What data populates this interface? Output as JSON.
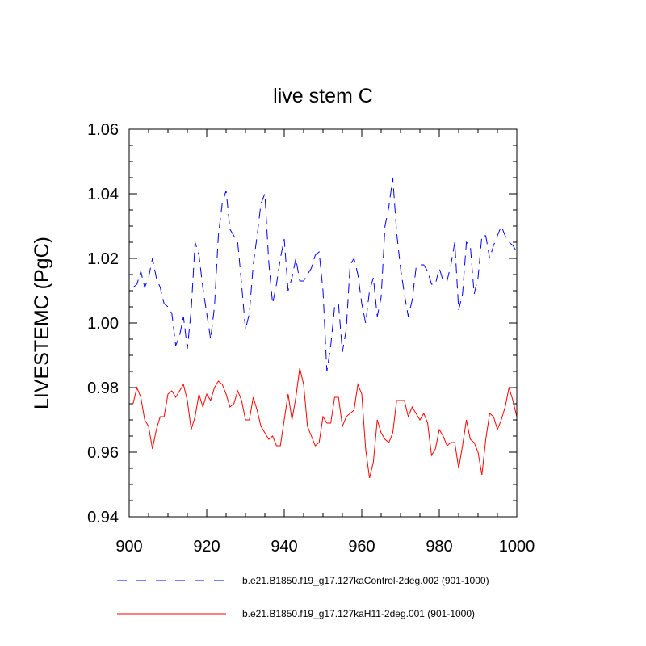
{
  "chart_data": {
    "type": "line",
    "title": "live stem C",
    "xlabel": "",
    "ylabel": "LIVESTEMC  (PgC)",
    "xlim": [
      900,
      1000
    ],
    "ylim": [
      0.94,
      1.06
    ],
    "x_ticks": [
      900,
      920,
      940,
      960,
      980,
      1000
    ],
    "x_tick_labels": [
      "900",
      "920",
      "940",
      "960",
      "980",
      "1000"
    ],
    "y_ticks": [
      0.94,
      0.96,
      0.98,
      1.0,
      1.02,
      1.04,
      1.06
    ],
    "y_tick_labels": [
      "0.94",
      "0.96",
      "0.98",
      "1.00",
      "1.02",
      "1.04",
      "1.06"
    ],
    "x_minor_step": 5,
    "y_minor_step": 0.005,
    "x": [
      901,
      902,
      903,
      904,
      905,
      906,
      907,
      908,
      909,
      910,
      911,
      912,
      913,
      914,
      915,
      916,
      917,
      918,
      919,
      920,
      921,
      922,
      923,
      924,
      925,
      926,
      927,
      928,
      929,
      930,
      931,
      932,
      933,
      934,
      935,
      936,
      937,
      938,
      939,
      940,
      941,
      942,
      943,
      944,
      945,
      946,
      947,
      948,
      949,
      950,
      951,
      952,
      953,
      954,
      955,
      956,
      957,
      958,
      959,
      960,
      961,
      962,
      963,
      964,
      965,
      966,
      967,
      968,
      969,
      970,
      971,
      972,
      973,
      974,
      975,
      976,
      977,
      978,
      979,
      980,
      981,
      982,
      983,
      984,
      985,
      986,
      987,
      988,
      989,
      990,
      991,
      992,
      993,
      994,
      995,
      996,
      997,
      998,
      999,
      1000
    ],
    "series": [
      {
        "name": "b.e21.B1850.f19_g17.127kaControl-2deg.002 (901-1000)",
        "color": "#0000ff",
        "dash": "dashed",
        "values": [
          1.011,
          1.012,
          1.016,
          1.011,
          1.014,
          1.02,
          1.014,
          1.011,
          1.006,
          1.005,
          1.003,
          0.993,
          0.996,
          1.002,
          0.992,
          1.004,
          1.025,
          1.021,
          1.011,
          1.003,
          0.995,
          1.005,
          1.027,
          1.037,
          1.041,
          1.029,
          1.027,
          1.025,
          1.012,
          0.998,
          1.003,
          1.018,
          1.027,
          1.037,
          1.04,
          1.019,
          1.006,
          1.012,
          1.02,
          1.026,
          1.01,
          1.014,
          1.02,
          1.013,
          1.013,
          1.015,
          1.017,
          1.021,
          1.022,
          1.01,
          0.985,
          0.993,
          1.005,
          1.006,
          0.991,
          0.998,
          1.018,
          1.02,
          1.015,
          1.006,
          1.0,
          1.01,
          1.014,
          1.002,
          1.008,
          1.03,
          1.036,
          1.045,
          1.028,
          1.017,
          1.009,
          1.002,
          1.007,
          1.017,
          1.018,
          1.018,
          1.016,
          1.012,
          1.012,
          1.017,
          1.013,
          1.013,
          1.018,
          1.025,
          1.004,
          1.009,
          1.025,
          1.024,
          1.009,
          1.014,
          1.027,
          1.027,
          1.02,
          1.024,
          1.027,
          1.03,
          1.027,
          1.025,
          1.024,
          1.022
        ]
      },
      {
        "name": "b.e21.B1850.f19_g17.127kaH11-2deg.001 (901-1000)",
        "color": "#ff0000",
        "dash": "solid",
        "values": [
          0.975,
          0.98,
          0.977,
          0.97,
          0.968,
          0.961,
          0.967,
          0.971,
          0.971,
          0.978,
          0.979,
          0.977,
          0.979,
          0.981,
          0.976,
          0.967,
          0.971,
          0.978,
          0.974,
          0.978,
          0.976,
          0.98,
          0.982,
          0.981,
          0.978,
          0.974,
          0.975,
          0.979,
          0.976,
          0.97,
          0.97,
          0.977,
          0.973,
          0.968,
          0.966,
          0.964,
          0.965,
          0.962,
          0.962,
          0.97,
          0.978,
          0.97,
          0.977,
          0.986,
          0.981,
          0.968,
          0.965,
          0.962,
          0.963,
          0.971,
          0.969,
          0.969,
          0.977,
          0.977,
          0.968,
          0.971,
          0.972,
          0.973,
          0.981,
          0.978,
          0.961,
          0.952,
          0.957,
          0.97,
          0.966,
          0.964,
          0.963,
          0.966,
          0.976,
          0.976,
          0.976,
          0.971,
          0.974,
          0.972,
          0.97,
          0.972,
          0.969,
          0.959,
          0.961,
          0.967,
          0.965,
          0.962,
          0.963,
          0.963,
          0.955,
          0.962,
          0.97,
          0.964,
          0.963,
          0.96,
          0.953,
          0.964,
          0.972,
          0.971,
          0.967,
          0.97,
          0.974,
          0.98,
          0.976,
          0.971
        ]
      }
    ],
    "legend_position": "bottom"
  }
}
